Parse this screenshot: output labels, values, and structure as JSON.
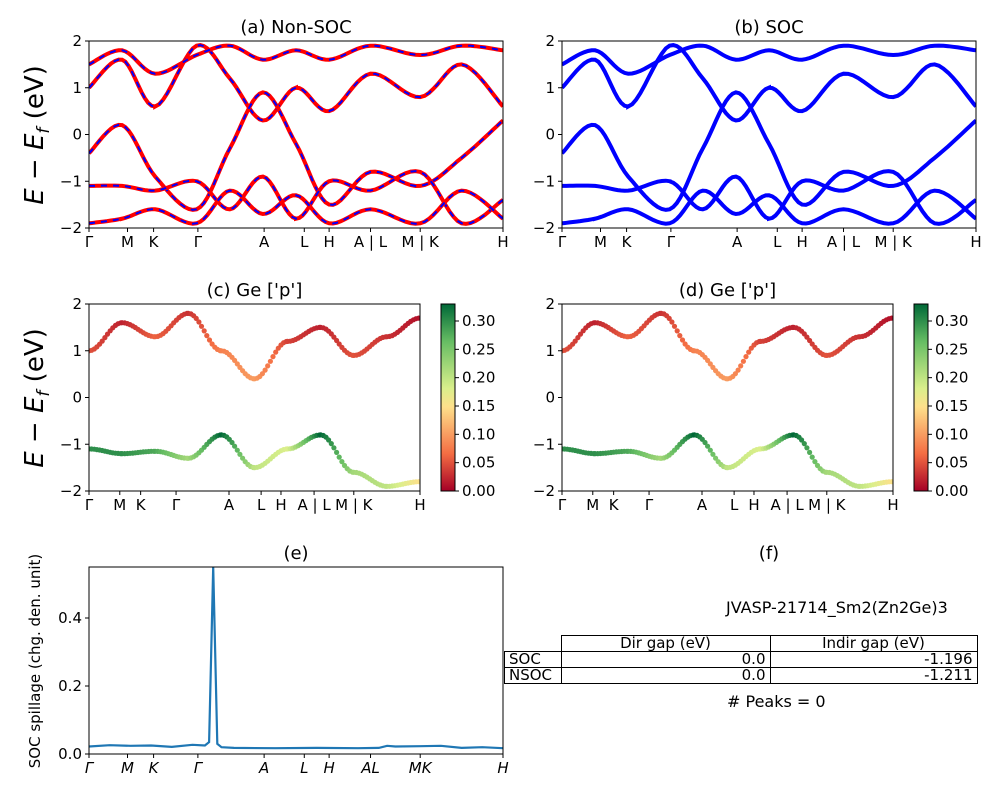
{
  "kpath": {
    "labels": [
      "Γ",
      "M",
      "K",
      "Γ",
      "A",
      "L",
      "H",
      "A | L",
      "M | K",
      "H"
    ],
    "positions": [
      0,
      0.093,
      0.156,
      0.263,
      0.423,
      0.52,
      0.58,
      0.68,
      0.8,
      1.0
    ]
  },
  "panels": {
    "a": {
      "title": "(a) Non-SOC"
    },
    "b": {
      "title": "(b) SOC"
    },
    "c": {
      "title": "(c)  Ge ['p']"
    },
    "d": {
      "title": "(d) Ge ['p']"
    },
    "e": {
      "title": "(e)"
    },
    "f": {
      "title": "(f)"
    }
  },
  "ylabel_energy": "E − E_f (eV)",
  "ylabel_spillage": "SOC spillage (chg. den. unit)",
  "colorbar": {
    "ticks": [
      "0.00",
      "0.05",
      "0.10",
      "0.15",
      "0.20",
      "0.25",
      "0.30"
    ],
    "max": 0.33,
    "colormap": "RdYlGn"
  },
  "colors": {
    "nsoc_line": "#ff0000",
    "nsoc_dash": "#0000ff",
    "soc_line": "#0000ff",
    "spillage": "#1f77b4"
  },
  "info": {
    "material": "JVASP-21714_Sm2(Zn2Ge)3",
    "table": {
      "header": [
        "",
        "Dir gap (eV)",
        "Indir gap (eV)"
      ],
      "rows": [
        [
          "SOC",
          "0.0",
          "-1.196"
        ],
        [
          "NSOC",
          "0.0",
          "-1.211"
        ]
      ]
    },
    "peaks": "# Peaks = 0"
  },
  "chart_data": [
    {
      "type": "line",
      "title": "(a) Non-SOC",
      "ylabel": "E − E_f (eV)",
      "ylim": [
        -2,
        2
      ],
      "yticks": [
        -2,
        -1,
        0,
        1,
        2
      ],
      "series": [
        {
          "x": [
            0,
            0.08,
            0.16,
            0.26,
            0.34,
            0.42,
            0.5,
            0.58,
            0.68,
            0.8,
            0.9,
            1.0
          ],
          "values": [
            1.0,
            1.6,
            0.6,
            1.9,
            1.2,
            0.3,
            1.0,
            0.5,
            1.3,
            0.8,
            1.5,
            0.6
          ]
        },
        {
          "x": [
            0,
            0.08,
            0.16,
            0.26,
            0.34,
            0.42,
            0.5,
            0.58,
            0.68,
            0.8,
            0.9,
            1.0
          ],
          "values": [
            -0.4,
            0.2,
            -0.9,
            -1.6,
            -0.3,
            0.9,
            -0.2,
            -1.5,
            -0.8,
            -1.1,
            -0.5,
            0.3
          ]
        },
        {
          "x": [
            0,
            0.08,
            0.16,
            0.26,
            0.34,
            0.42,
            0.5,
            0.58,
            0.68,
            0.8,
            0.9,
            1.0
          ],
          "values": [
            -1.1,
            -1.1,
            -1.2,
            -1.0,
            -1.6,
            -0.9,
            -1.8,
            -1.0,
            -1.2,
            -0.8,
            -1.9,
            -1.4
          ]
        },
        {
          "x": [
            0,
            0.08,
            0.16,
            0.26,
            0.34,
            0.42,
            0.5,
            0.58,
            0.68,
            0.8,
            0.9,
            1.0
          ],
          "values": [
            -1.9,
            -1.8,
            -1.6,
            -1.9,
            -1.2,
            -1.7,
            -1.3,
            -1.9,
            -1.6,
            -1.9,
            -1.2,
            -1.8
          ]
        },
        {
          "x": [
            0,
            0.08,
            0.16,
            0.26,
            0.34,
            0.42,
            0.5,
            0.58,
            0.68,
            0.8,
            0.9,
            1.0
          ],
          "values": [
            1.5,
            1.8,
            1.3,
            1.7,
            1.9,
            1.6,
            1.8,
            1.6,
            1.9,
            1.7,
            1.9,
            1.8
          ]
        }
      ]
    },
    {
      "type": "line",
      "title": "(b) SOC",
      "ylim": [
        -2,
        2
      ],
      "yticks": [
        -2,
        -1,
        0,
        1,
        2
      ],
      "series": [
        {
          "x": [
            0,
            0.08,
            0.16,
            0.26,
            0.34,
            0.42,
            0.5,
            0.58,
            0.68,
            0.8,
            0.9,
            1.0
          ],
          "values": [
            1.0,
            1.6,
            0.6,
            1.9,
            1.2,
            0.3,
            1.0,
            0.5,
            1.3,
            0.8,
            1.5,
            0.6
          ]
        },
        {
          "x": [
            0,
            0.08,
            0.16,
            0.26,
            0.34,
            0.42,
            0.5,
            0.58,
            0.68,
            0.8,
            0.9,
            1.0
          ],
          "values": [
            -0.4,
            0.2,
            -0.9,
            -1.6,
            -0.3,
            0.9,
            -0.2,
            -1.5,
            -0.8,
            -1.1,
            -0.5,
            0.3
          ]
        },
        {
          "x": [
            0,
            0.08,
            0.16,
            0.26,
            0.34,
            0.42,
            0.5,
            0.58,
            0.68,
            0.8,
            0.9,
            1.0
          ],
          "values": [
            -1.1,
            -1.1,
            -1.2,
            -1.0,
            -1.6,
            -0.9,
            -1.8,
            -1.0,
            -1.2,
            -0.8,
            -1.9,
            -1.4
          ]
        },
        {
          "x": [
            0,
            0.08,
            0.16,
            0.26,
            0.34,
            0.42,
            0.5,
            0.58,
            0.68,
            0.8,
            0.9,
            1.0
          ],
          "values": [
            -1.9,
            -1.8,
            -1.6,
            -1.9,
            -1.2,
            -1.7,
            -1.3,
            -1.9,
            -1.6,
            -1.9,
            -1.2,
            -1.8
          ]
        },
        {
          "x": [
            0,
            0.08,
            0.16,
            0.26,
            0.34,
            0.42,
            0.5,
            0.58,
            0.68,
            0.8,
            0.9,
            1.0
          ],
          "values": [
            1.5,
            1.8,
            1.3,
            1.7,
            1.9,
            1.6,
            1.8,
            1.6,
            1.9,
            1.7,
            1.9,
            1.8
          ]
        }
      ]
    },
    {
      "type": "scatter",
      "title": "(c)  Ge ['p']",
      "ylim": [
        -2,
        2
      ],
      "series": [
        {
          "name": "p-weight",
          "x": [
            0,
            0.1,
            0.2,
            0.3,
            0.4,
            0.5,
            0.6,
            0.7,
            0.8,
            0.9,
            1.0
          ],
          "values": [
            -1.1,
            -1.2,
            -1.15,
            -1.3,
            -0.8,
            -1.5,
            -1.1,
            -0.8,
            -1.6,
            -1.9,
            -1.8
          ],
          "weights": [
            0.3,
            0.3,
            0.28,
            0.22,
            0.33,
            0.2,
            0.18,
            0.33,
            0.22,
            0.2,
            0.15
          ]
        },
        {
          "name": "p-weight-2",
          "x": [
            0,
            0.1,
            0.2,
            0.3,
            0.4,
            0.5,
            0.6,
            0.7,
            0.8,
            0.9,
            1.0
          ],
          "values": [
            1.0,
            1.6,
            1.3,
            1.8,
            1.0,
            0.4,
            1.2,
            1.5,
            0.9,
            1.3,
            1.7
          ],
          "weights": [
            0.05,
            0.02,
            0.06,
            0.03,
            0.08,
            0.1,
            0.04,
            0.02,
            0.05,
            0.03,
            0.01
          ]
        }
      ]
    },
    {
      "type": "scatter",
      "title": "(d) Ge ['p']",
      "ylim": [
        -2,
        2
      ],
      "series": [
        {
          "name": "p-weight",
          "x": [
            0,
            0.1,
            0.2,
            0.3,
            0.4,
            0.5,
            0.6,
            0.7,
            0.8,
            0.9,
            1.0
          ],
          "values": [
            -1.1,
            -1.2,
            -1.15,
            -1.3,
            -0.8,
            -1.5,
            -1.1,
            -0.8,
            -1.6,
            -1.9,
            -1.8
          ],
          "weights": [
            0.3,
            0.3,
            0.28,
            0.22,
            0.33,
            0.2,
            0.18,
            0.33,
            0.22,
            0.2,
            0.15
          ]
        },
        {
          "name": "p-weight-2",
          "x": [
            0,
            0.1,
            0.2,
            0.3,
            0.4,
            0.5,
            0.6,
            0.7,
            0.8,
            0.9,
            1.0
          ],
          "values": [
            1.0,
            1.6,
            1.3,
            1.8,
            1.0,
            0.4,
            1.2,
            1.5,
            0.9,
            1.3,
            1.7
          ],
          "weights": [
            0.05,
            0.02,
            0.06,
            0.03,
            0.08,
            0.1,
            0.04,
            0.02,
            0.05,
            0.03,
            0.01
          ]
        }
      ]
    },
    {
      "type": "line",
      "title": "(e)",
      "ylabel": "SOC spillage (chg. den. unit)",
      "ylim": [
        0,
        0.55
      ],
      "yticks": [
        "0.0",
        "0.2",
        "0.4"
      ],
      "x": [
        0,
        0.05,
        0.1,
        0.15,
        0.2,
        0.25,
        0.28,
        0.29,
        0.3,
        0.31,
        0.32,
        0.35,
        0.45,
        0.55,
        0.65,
        0.7,
        0.72,
        0.74,
        0.8,
        0.85,
        0.9,
        0.95,
        1.0
      ],
      "values": [
        0.022,
        0.026,
        0.024,
        0.025,
        0.021,
        0.027,
        0.025,
        0.035,
        0.55,
        0.03,
        0.02,
        0.018,
        0.017,
        0.018,
        0.017,
        0.018,
        0.024,
        0.022,
        0.023,
        0.024,
        0.018,
        0.02,
        0.017
      ]
    }
  ]
}
